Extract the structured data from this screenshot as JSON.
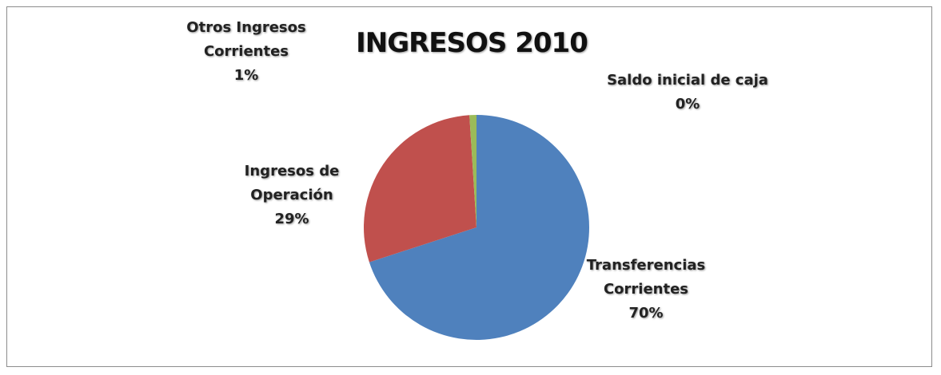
{
  "chart_data": {
    "type": "pie",
    "title": "INGRESOS 2010",
    "categories": [
      "Transferencias Corrientes",
      "Ingresos de Operación",
      "Otros Ingresos Corrientes",
      "Saldo inicial de caja"
    ],
    "values": [
      70,
      29,
      1,
      0
    ],
    "value_labels": [
      "70%",
      "29%",
      "1%",
      "0%"
    ],
    "colors": [
      "#4f81bd",
      "#c0504d",
      "#9bbb59",
      "#8064a2"
    ]
  }
}
